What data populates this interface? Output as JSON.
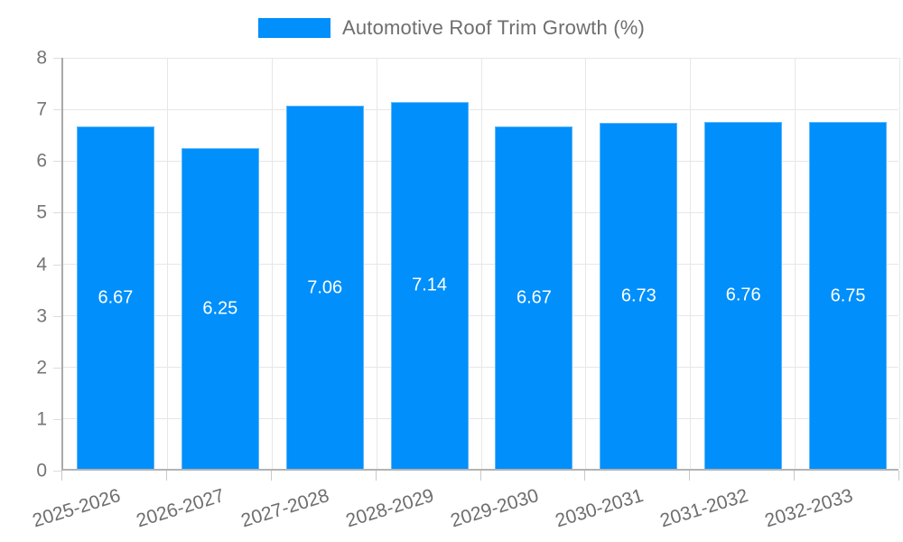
{
  "chart_data": {
    "type": "bar",
    "title": "Automotive Roof Trim Growth (%)",
    "categories": [
      "2025-2026",
      "2026-2027",
      "2027-2028",
      "2028-2029",
      "2029-2030",
      "2030-2031",
      "2031-2032",
      "2032-2033"
    ],
    "values": [
      6.67,
      6.25,
      7.06,
      7.14,
      6.67,
      6.73,
      6.76,
      6.75
    ],
    "value_labels": [
      "6.67",
      "6.25",
      "7.06",
      "7.14",
      "6.67",
      "6.73",
      "6.76",
      "6.75"
    ],
    "ylim": [
      0,
      8
    ],
    "yticks": [
      "0",
      "1",
      "2",
      "3",
      "4",
      "5",
      "6",
      "7",
      "8"
    ],
    "grid": true,
    "legend_position": "top",
    "bar_color": "#008FFB",
    "value_label_color": "#ffffff"
  }
}
